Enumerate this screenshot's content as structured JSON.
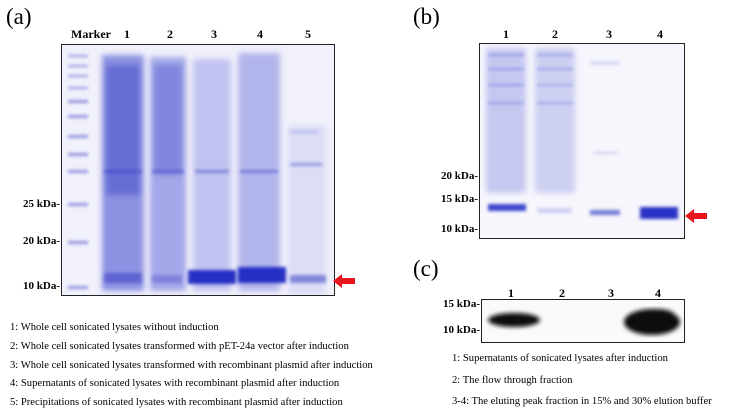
{
  "panel_a": {
    "label": "(a)",
    "lanes": [
      "Marker",
      "1",
      "2",
      "3",
      "4",
      "5"
    ],
    "mw": [
      "25 kDa-",
      "20 kDa-",
      "10 kDa-"
    ],
    "legend": [
      "1: Whole cell sonicated lysates without induction",
      "2: Whole cell sonicated lysates transformed with pET-24a vector after induction",
      "3: Whole cell sonicated lysates transformed with recombinant plasmid after induction",
      "4: Supernatants of sonicated lysates with recombinant plasmid after induction",
      "5: Precipitations of sonicated lysates with recombinant plasmid after induction"
    ]
  },
  "panel_b": {
    "label": "(b)",
    "lanes": [
      "1",
      "2",
      "3",
      "4"
    ],
    "mw": [
      "20 kDa-",
      "15 kDa-",
      "10 kDa-"
    ]
  },
  "panel_c": {
    "label": "(c)",
    "lanes": [
      "1",
      "2",
      "3",
      "4"
    ],
    "mw": [
      "15 kDa-",
      "10 kDa-"
    ],
    "legend": [
      "1: Supernatants of sonicated lysates after induction",
      "2: The flow through fraction",
      "3-4: The eluting peak fraction in 15% and 30% elution buffer"
    ]
  },
  "colors": {
    "stain": "#5a63d8",
    "arrow": "#e8141e",
    "blot": "#0a0a0a"
  }
}
